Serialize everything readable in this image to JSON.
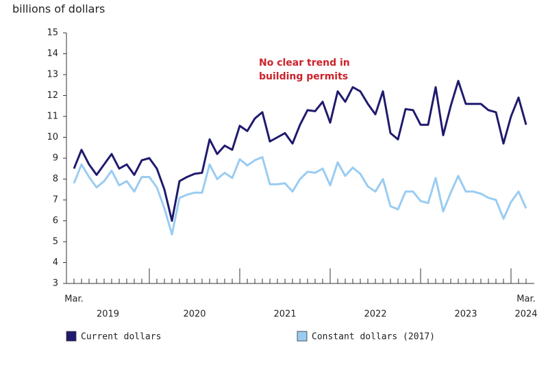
{
  "chart_data": {
    "type": "line",
    "y_axis_label": "billions of dollars",
    "annotation": [
      "No clear trend in",
      "building permits"
    ],
    "annotation_color": "#cc2229",
    "categories": [
      "Mar.",
      null,
      null,
      null,
      null,
      null,
      null,
      null,
      null,
      null,
      null,
      null,
      null,
      null,
      null,
      null,
      null,
      null,
      null,
      null,
      null,
      null,
      null,
      null,
      null,
      null,
      null,
      null,
      null,
      null,
      null,
      null,
      null,
      null,
      null,
      null,
      null,
      null,
      null,
      null,
      null,
      null,
      null,
      null,
      null,
      null,
      null,
      null,
      null,
      null,
      null,
      null,
      null,
      null,
      null,
      null,
      null,
      null,
      null,
      null,
      "Mar."
    ],
    "years": [
      "2019",
      "2020",
      "2021",
      "2022",
      "2023",
      "2024"
    ],
    "series": [
      {
        "name": "Current dollars",
        "color": "#1f1a6e",
        "values": [
          8.5,
          9.4,
          8.7,
          8.2,
          8.7,
          9.2,
          8.5,
          8.7,
          8.2,
          8.9,
          9.0,
          8.5,
          7.5,
          6.0,
          7.9,
          8.1,
          8.25,
          8.3,
          9.9,
          9.2,
          9.6,
          9.4,
          10.55,
          10.3,
          10.9,
          11.2,
          9.8,
          10.0,
          10.2,
          9.7,
          10.6,
          11.3,
          11.25,
          11.7,
          10.7,
          12.2,
          11.7,
          12.4,
          12.2,
          11.6,
          11.1,
          12.2,
          10.2,
          9.9,
          11.35,
          11.3,
          10.6,
          10.6,
          12.4,
          10.1,
          11.5,
          12.7,
          11.6,
          11.6,
          11.6,
          11.3,
          11.2,
          9.7,
          11.0,
          11.9,
          10.6
        ]
      },
      {
        "name": "Constant dollars (2017)",
        "color": "#99ccf2",
        "values": [
          7.8,
          8.7,
          8.1,
          7.6,
          7.9,
          8.4,
          7.7,
          7.9,
          7.4,
          8.1,
          8.1,
          7.6,
          6.6,
          5.35,
          7.1,
          7.25,
          7.35,
          7.35,
          8.7,
          8.0,
          8.3,
          8.05,
          8.95,
          8.65,
          8.9,
          9.05,
          7.75,
          7.75,
          7.8,
          7.4,
          8.0,
          8.35,
          8.3,
          8.5,
          7.7,
          8.8,
          8.15,
          8.55,
          8.25,
          7.65,
          7.4,
          8.0,
          6.7,
          6.55,
          7.4,
          7.4,
          6.95,
          6.85,
          8.05,
          6.45,
          7.35,
          8.15,
          7.4,
          7.4,
          7.3,
          7.1,
          7.0,
          6.1,
          6.9,
          7.4,
          6.6
        ]
      }
    ],
    "ylim": [
      3,
      15
    ],
    "yticks": [
      3,
      4,
      5,
      6,
      7,
      8,
      9,
      10,
      11,
      12,
      13,
      14,
      15
    ]
  }
}
